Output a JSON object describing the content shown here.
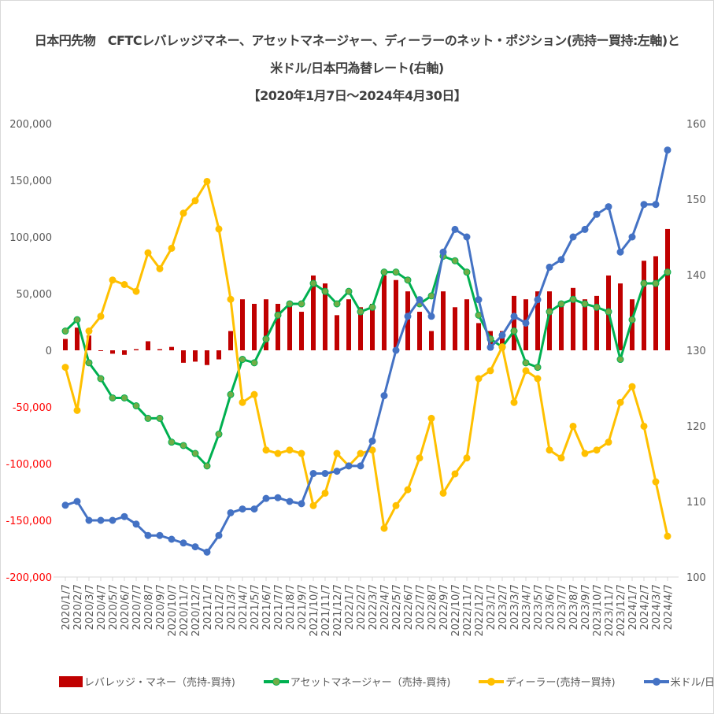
{
  "title": {
    "line1": "日本円先物　CFTCレバレッジマネー、アセットマネージャー、ディーラーのネット・ポジション(売持ー買持:左軸)と",
    "line2": "米ドル/日本円為替レート(右軸)",
    "line3": "【2020年1月7日～2024年4月30日】"
  },
  "chart_data": {
    "type": "bar+line",
    "x": [
      "2020/1/7",
      "2020/2/7",
      "2020/3/7",
      "2020/4/7",
      "2020/5/7",
      "2020/6/7",
      "2020/7/7",
      "2020/8/7",
      "2020/9/7",
      "2020/10/7",
      "2020/11/7",
      "2020/12/7",
      "2021/1/7",
      "2021/2/7",
      "2021/3/7",
      "2021/4/7",
      "2021/5/7",
      "2021/6/7",
      "2021/7/7",
      "2021/8/7",
      "2021/9/7",
      "2021/10/7",
      "2021/11/7",
      "2021/12/7",
      "2022/1/7",
      "2022/2/7",
      "2022/3/7",
      "2022/4/7",
      "2022/5/7",
      "2022/6/7",
      "2022/7/7",
      "2022/8/7",
      "2022/9/7",
      "2022/10/7",
      "2022/11/7",
      "2022/12/7",
      "2023/1/7",
      "2023/2/7",
      "2023/3/7",
      "2023/4/7",
      "2023/5/7",
      "2023/6/7",
      "2023/7/7",
      "2023/8/7",
      "2023/9/7",
      "2023/10/7",
      "2023/11/7",
      "2023/12/7",
      "2024/1/7",
      "2024/2/7",
      "2024/3/7",
      "2024/4/7"
    ],
    "y_left": {
      "range": [
        -200000,
        200000
      ],
      "ticks": [
        "200,000",
        "150,000",
        "100,000",
        "50,000",
        "0",
        "-50,000",
        "-100,000",
        "-150,000",
        "-200,000"
      ],
      "negative_color": "#ff0000"
    },
    "y_right": {
      "range": [
        100,
        160
      ],
      "ticks": [
        "160",
        "150",
        "140",
        "130",
        "120",
        "110",
        "100"
      ]
    },
    "grid": false,
    "legend_position": "bottom",
    "series": [
      {
        "name": "レバレッジ・マネー（売持-買持)",
        "type": "bar",
        "axis": "left",
        "color": "#c00000",
        "values": [
          10000,
          20000,
          13000,
          0,
          -3000,
          -4000,
          1000,
          8000,
          1000,
          3000,
          -11000,
          -10000,
          -13000,
          -8000,
          17000,
          45000,
          41000,
          45000,
          41000,
          41000,
          34000,
          66000,
          59000,
          31000,
          45000,
          38000,
          41000,
          66000,
          62000,
          52000,
          34000,
          17000,
          52000,
          38000,
          45000,
          24000,
          17000,
          17000,
          48000,
          45000,
          52000,
          52000,
          41000,
          55000,
          45000,
          48000,
          66000,
          59000,
          45000,
          79000,
          83000,
          107000
        ]
      },
      {
        "name": "アセットマネージャー（売持-買持)",
        "type": "line",
        "axis": "left",
        "color": "#00b050",
        "marker_color": "#70ad47",
        "values": [
          17000,
          27000,
          -11000,
          -25000,
          -42000,
          -42000,
          -49000,
          -60000,
          -60000,
          -81000,
          -84000,
          -91000,
          -102000,
          -74000,
          -39000,
          -8000,
          -11000,
          10000,
          31000,
          41000,
          41000,
          59000,
          52000,
          41000,
          52000,
          34000,
          38000,
          69000,
          69000,
          62000,
          41000,
          48000,
          83000,
          79000,
          69000,
          31000,
          10000,
          3000,
          17000,
          -11000,
          -15000,
          34000,
          41000,
          45000,
          41000,
          38000,
          34000,
          -8000,
          27000,
          59000,
          59000,
          69000
        ]
      },
      {
        "name": "ディーラー(売持ー買持)",
        "type": "line",
        "axis": "left",
        "color": "#ffc000",
        "values": [
          -15000,
          -53000,
          17000,
          30000,
          62000,
          58000,
          52000,
          86000,
          72000,
          90000,
          121000,
          132000,
          149000,
          107000,
          45000,
          -46000,
          -39000,
          -88000,
          -91000,
          -88000,
          -91000,
          -137000,
          -126000,
          -91000,
          -102000,
          -91000,
          -88000,
          -157000,
          -137000,
          -123000,
          -95000,
          -60000,
          -126000,
          -109000,
          -95000,
          -25000,
          -18000,
          3000,
          -46000,
          -18000,
          -25000,
          -88000,
          -95000,
          -67000,
          -91000,
          -88000,
          -81000,
          -46000,
          -32000,
          -67000,
          -116000,
          -164000
        ]
      },
      {
        "name": "米ドル/日本円",
        "type": "line",
        "axis": "right",
        "color": "#4472c4",
        "values": [
          109.5,
          110,
          107.5,
          107.5,
          107.5,
          108,
          107,
          105.5,
          105.5,
          105,
          104.5,
          104,
          103.3,
          105.5,
          108.5,
          109,
          109,
          110.4,
          110.5,
          110,
          109.7,
          113.7,
          113.7,
          114,
          114.7,
          114.7,
          118,
          124,
          130,
          134.5,
          136.7,
          134.5,
          143,
          146,
          145,
          136.7,
          130.4,
          132,
          134.5,
          133.6,
          136.7,
          141,
          142,
          145,
          146,
          148,
          149,
          143,
          145,
          149.3,
          149.3,
          156.5
        ]
      }
    ]
  }
}
